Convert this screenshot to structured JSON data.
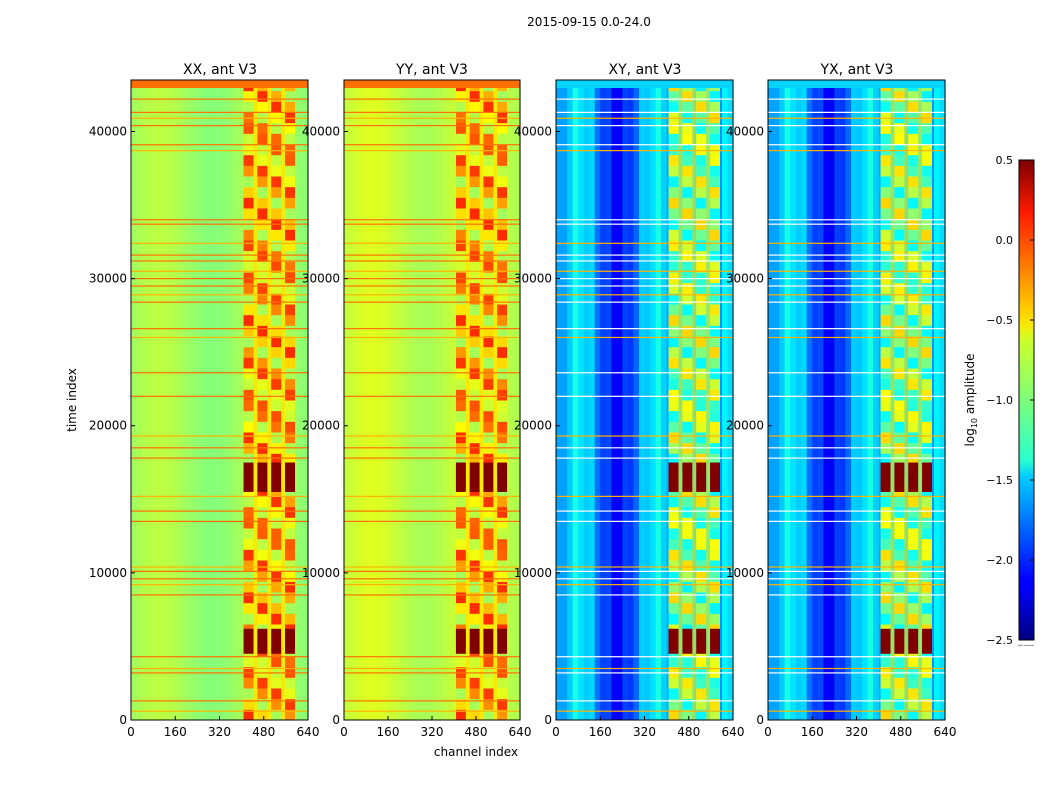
{
  "chart_data": {
    "type": "heatmap",
    "suptitle": "2015-09-15 0.0-24.0",
    "xlabel": "channel index",
    "ylabel": "time index",
    "x_range": [
      0,
      640
    ],
    "y_range": [
      0,
      43500
    ],
    "x_ticks": [
      "0",
      "160",
      "320",
      "480",
      "640"
    ],
    "y_ticks": [
      "0",
      "10000",
      "20000",
      "30000",
      "40000"
    ],
    "panels": [
      {
        "title": "XX, ant V3",
        "pol": "XX",
        "baseline_log_amp": -0.9
      },
      {
        "title": "YY, ant V3",
        "pol": "YY",
        "baseline_log_amp": -0.8
      },
      {
        "title": "XY, ant V3",
        "pol": "XY",
        "baseline_log_amp": -1.8
      },
      {
        "title": "YX, ant V3",
        "pol": "YX",
        "baseline_log_amp": -1.8
      }
    ],
    "rfi_channel_range": [
      410,
      590
    ],
    "rfi_channel_columns": [
      425,
      475,
      525,
      575
    ],
    "strong_rfi_time_ranges": [
      [
        15500,
        17500
      ],
      [
        4500,
        6200
      ]
    ],
    "flagged_time_rows": [
      600,
      1300,
      3200,
      3500,
      4300,
      8500,
      9200,
      9600,
      10100,
      10400,
      13500,
      14200,
      15200,
      17800,
      18500,
      19300,
      22000,
      23600,
      26000,
      26600,
      28400,
      28900,
      29500,
      30000,
      30500,
      31200,
      31600,
      32400,
      33700,
      34000,
      38700,
      39100,
      40400,
      40900,
      41300,
      42200
    ],
    "colorbar": {
      "label": "log10 amplitude",
      "label_main": "log",
      "label_sub": "10",
      "label_tail": " amplitude",
      "min": -2.5,
      "max": 0.5,
      "ticks": [
        "0.5",
        "0.0",
        "−0.5",
        "−1.0",
        "−1.5",
        "−2.0",
        "−2.5"
      ],
      "colormap": "jet"
    }
  }
}
